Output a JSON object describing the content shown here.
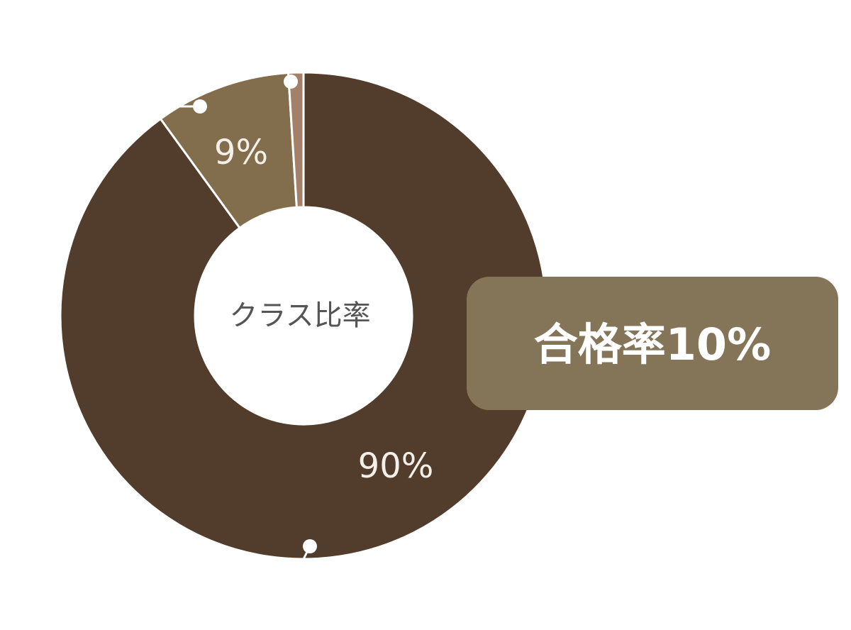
{
  "chart_data": {
    "type": "donut",
    "center_label": "クラス比率",
    "annotation": "合格率10%",
    "categories": [
      null,
      null,
      null
    ],
    "values": [
      90,
      9,
      1
    ],
    "value_labels": [
      "90%",
      "9%",
      null
    ],
    "colors": [
      "#523d2d",
      "#826d4d",
      "#a3806a"
    ]
  }
}
